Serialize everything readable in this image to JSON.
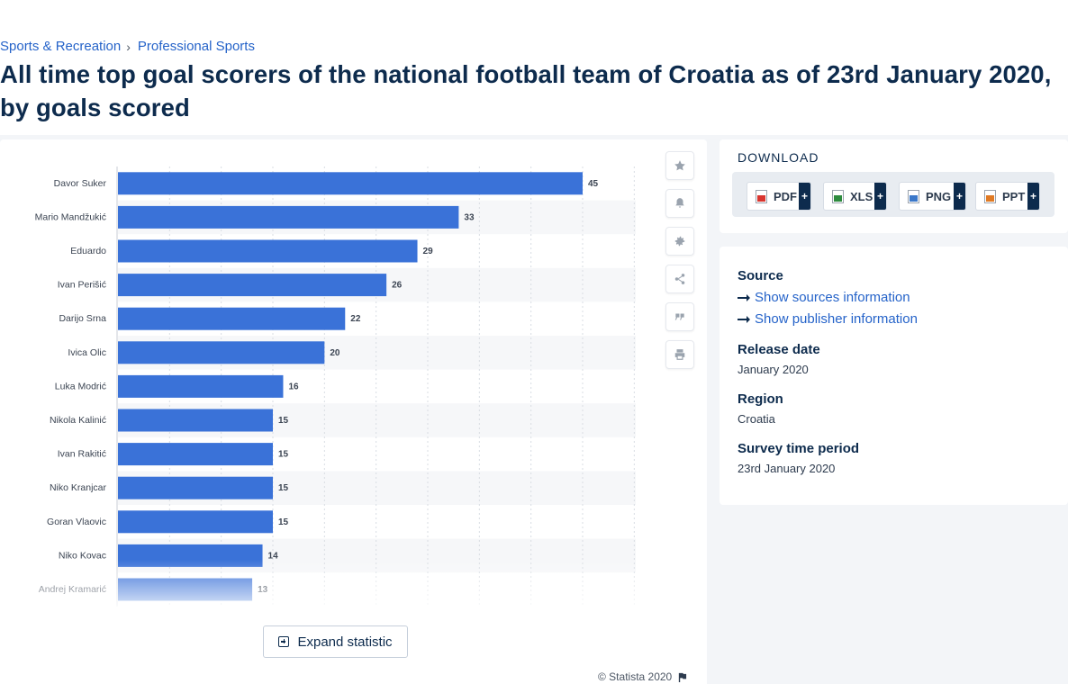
{
  "breadcrumb": {
    "item1": "Sports & Recreation",
    "separator": "›",
    "item2": "Professional Sports"
  },
  "page_title": "All time top goal scorers of the national football team of Croatia as of 23rd January 2020, by goals scored",
  "tools": {
    "icons": [
      "star-icon",
      "bell-icon",
      "gear-icon",
      "share-icon",
      "quote-icon",
      "print-icon"
    ]
  },
  "expand_label": "Expand statistic",
  "credit": "© Statista 2020",
  "download": {
    "title": "DOWNLOAD",
    "buttons": [
      {
        "label": "PDF",
        "plus": "+",
        "color": "#d9352f"
      },
      {
        "label": "XLS",
        "plus": "+",
        "color": "#2e8b3e"
      },
      {
        "label": "PNG",
        "plus": "+",
        "color": "#3b78c9"
      },
      {
        "label": "PPT",
        "plus": "+",
        "color": "#e07a24"
      }
    ]
  },
  "info": {
    "source_label": "Source",
    "show_sources": "Show sources information",
    "show_publisher": "Show publisher information",
    "release_label": "Release date",
    "release_value": "January 2020",
    "region_label": "Region",
    "region_value": "Croatia",
    "survey_label": "Survey time period",
    "survey_value": "23rd January 2020"
  },
  "colors": {
    "bar": "#3a72d8",
    "link": "#2563c9",
    "title": "#0d2b4d"
  },
  "chart_data": {
    "type": "bar",
    "orientation": "horizontal",
    "categories": [
      "Davor Suker",
      "Mario Mandžukić",
      "Eduardo",
      "Ivan Perišić",
      "Darijo Srna",
      "Ivica Olic",
      "Luka Modrić",
      "Nikola Kalinić",
      "Ivan Rakitić",
      "Niko Kranjcar",
      "Goran Vlaovic",
      "Niko Kovac",
      "Andrej Kramarić"
    ],
    "values": [
      45,
      33,
      29,
      26,
      22,
      20,
      16,
      15,
      15,
      15,
      15,
      14,
      13
    ],
    "xlim": [
      0,
      50
    ],
    "grid": true,
    "data_labels": true
  }
}
